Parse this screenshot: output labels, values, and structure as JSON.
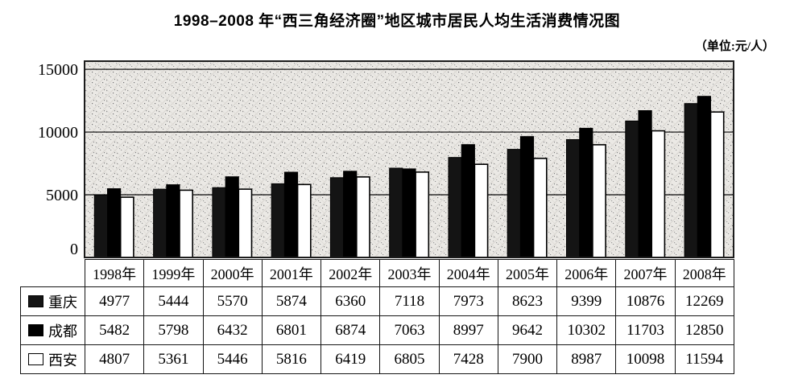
{
  "title": "1998–2008 年“西三角经济圈”地区城市居民人均生活消费情况图",
  "unit_label": "（单位:元/人）",
  "chart_data": {
    "type": "bar",
    "categories": [
      "1998年",
      "1999年",
      "2000年",
      "2001年",
      "2002年",
      "2003年",
      "2004年",
      "2005年",
      "2006年",
      "2007年",
      "2008年"
    ],
    "series": [
      {
        "id": "chongqing",
        "name": "重庆",
        "fill": "#141414",
        "values": [
          4977,
          5444,
          5570,
          5874,
          6360,
          7118,
          7973,
          8623,
          9399,
          10876,
          12269
        ]
      },
      {
        "id": "chengdu",
        "name": "成都",
        "fill": "#000000",
        "values": [
          5482,
          5798,
          6432,
          6801,
          6874,
          7063,
          8997,
          9642,
          10302,
          11703,
          12850
        ]
      },
      {
        "id": "xian",
        "name": "西安",
        "fill": "#ffffff",
        "values": [
          4807,
          5361,
          5446,
          5816,
          6419,
          6805,
          7428,
          7900,
          8987,
          10098,
          11594
        ]
      }
    ],
    "xlabel": "",
    "ylabel": "",
    "ylim": [
      0,
      15650
    ],
    "yticks": [
      0,
      5000,
      10000,
      15000
    ],
    "grid": true,
    "legend_position": "table-rows-left",
    "plot_background": "speckled-gray"
  }
}
